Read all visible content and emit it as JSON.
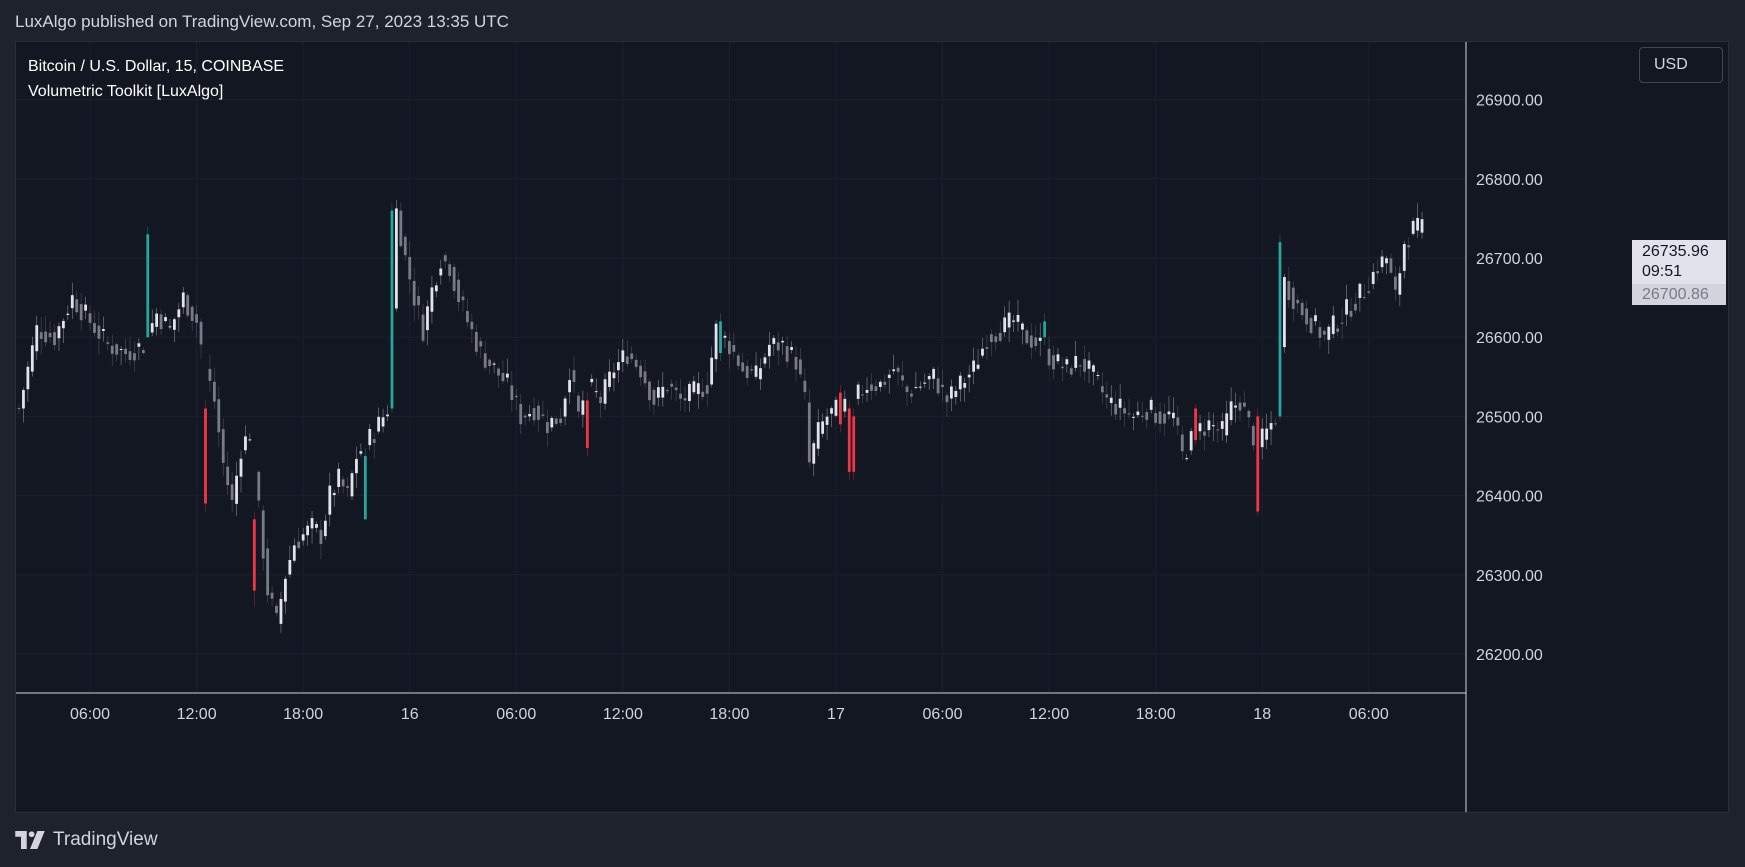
{
  "header": {
    "published_line": "LuxAlgo published on TradingView.com, Sep 27, 2023 13:35 UTC"
  },
  "legend": {
    "symbol_line": "Bitcoin / U.S. Dollar, 15, COINBASE",
    "indicator_line": "Volumetric Toolkit [LuxAlgo]"
  },
  "price_scale": {
    "currency_label": "USD",
    "last_price": "26735.96",
    "countdown": "09:51",
    "secondary_price": "26700.86"
  },
  "footer": {
    "brand": "TradingView"
  },
  "colors": {
    "background": "#131722",
    "frame": "#1e222d",
    "candle_neutral_up": "#e0e3eb",
    "candle_neutral_down": "#787b86",
    "bull_highlight": "#26a69a",
    "bear_highlight": "#f23645",
    "grid": "#1c2030",
    "axis_text": "#d1d4dc"
  },
  "chart_data": {
    "type": "candlestick",
    "title": "Bitcoin / U.S. Dollar, 15, COINBASE",
    "y_ticks": [
      26200,
      26300,
      26400,
      26500,
      26600,
      26700,
      26800,
      26900
    ],
    "ylim": [
      26150,
      26950
    ],
    "x_ticks": [
      {
        "label": "06:00",
        "i": 16
      },
      {
        "label": "12:00",
        "i": 40
      },
      {
        "label": "18:00",
        "i": 64
      },
      {
        "label": "16",
        "i": 88
      },
      {
        "label": "06:00",
        "i": 112
      },
      {
        "label": "12:00",
        "i": 136
      },
      {
        "label": "18:00",
        "i": 160
      },
      {
        "label": "17",
        "i": 184
      },
      {
        "label": "06:00",
        "i": 208
      },
      {
        "label": "12:00",
        "i": 232
      },
      {
        "label": "18:00",
        "i": 256
      },
      {
        "label": "18",
        "i": 280
      },
      {
        "label": "06:00",
        "i": 304
      }
    ],
    "anchors": [
      [
        0,
        26510
      ],
      [
        4,
        26610
      ],
      [
        8,
        26600
      ],
      [
        12,
        26650
      ],
      [
        16,
        26620
      ],
      [
        20,
        26590
      ],
      [
        24,
        26580
      ],
      [
        28,
        26590
      ],
      [
        31,
        26630
      ],
      [
        34,
        26610
      ],
      [
        37,
        26650
      ],
      [
        40,
        26620
      ],
      [
        42,
        26560
      ],
      [
        44,
        26520
      ],
      [
        46,
        26440
      ],
      [
        48,
        26390
      ],
      [
        50,
        26460
      ],
      [
        52,
        26480
      ],
      [
        54,
        26380
      ],
      [
        56,
        26280
      ],
      [
        58,
        26240
      ],
      [
        60,
        26300
      ],
      [
        62,
        26340
      ],
      [
        64,
        26350
      ],
      [
        66,
        26360
      ],
      [
        68,
        26350
      ],
      [
        70,
        26400
      ],
      [
        72,
        26420
      ],
      [
        74,
        26400
      ],
      [
        76,
        26450
      ],
      [
        80,
        26480
      ],
      [
        83,
        26510
      ],
      [
        85,
        26760
      ],
      [
        87,
        26700
      ],
      [
        89,
        26650
      ],
      [
        91,
        26610
      ],
      [
        93,
        26660
      ],
      [
        95,
        26700
      ],
      [
        97,
        26690
      ],
      [
        99,
        26650
      ],
      [
        101,
        26620
      ],
      [
        104,
        26580
      ],
      [
        107,
        26560
      ],
      [
        110,
        26540
      ],
      [
        113,
        26500
      ],
      [
        116,
        26510
      ],
      [
        119,
        26490
      ],
      [
        122,
        26500
      ],
      [
        124,
        26560
      ],
      [
        126,
        26500
      ],
      [
        128,
        26540
      ],
      [
        131,
        26520
      ],
      [
        134,
        26560
      ],
      [
        137,
        26580
      ],
      [
        140,
        26560
      ],
      [
        143,
        26520
      ],
      [
        146,
        26540
      ],
      [
        149,
        26520
      ],
      [
        152,
        26530
      ],
      [
        155,
        26540
      ],
      [
        157,
        26610
      ],
      [
        160,
        26590
      ],
      [
        163,
        26560
      ],
      [
        166,
        26550
      ],
      [
        169,
        26590
      ],
      [
        172,
        26590
      ],
      [
        175,
        26570
      ],
      [
        177,
        26520
      ],
      [
        178,
        26440
      ],
      [
        180,
        26480
      ],
      [
        182,
        26500
      ],
      [
        185,
        26510
      ],
      [
        188,
        26520
      ],
      [
        191,
        26540
      ],
      [
        194,
        26540
      ],
      [
        197,
        26560
      ],
      [
        200,
        26530
      ],
      [
        203,
        26540
      ],
      [
        206,
        26550
      ],
      [
        209,
        26520
      ],
      [
        212,
        26540
      ],
      [
        215,
        26560
      ],
      [
        218,
        26600
      ],
      [
        221,
        26610
      ],
      [
        224,
        26620
      ],
      [
        227,
        26600
      ],
      [
        230,
        26590
      ],
      [
        233,
        26570
      ],
      [
        236,
        26560
      ],
      [
        239,
        26570
      ],
      [
        242,
        26550
      ],
      [
        245,
        26520
      ],
      [
        248,
        26510
      ],
      [
        251,
        26500
      ],
      [
        254,
        26510
      ],
      [
        257,
        26500
      ],
      [
        260,
        26500
      ],
      [
        262,
        26450
      ],
      [
        265,
        26480
      ],
      [
        268,
        26490
      ],
      [
        271,
        26480
      ],
      [
        273,
        26510
      ],
      [
        275,
        26520
      ],
      [
        277,
        26490
      ],
      [
        279,
        26460
      ],
      [
        281,
        26480
      ],
      [
        283,
        26500
      ],
      [
        285,
        26670
      ],
      [
        288,
        26640
      ],
      [
        291,
        26620
      ],
      [
        294,
        26600
      ],
      [
        297,
        26620
      ],
      [
        300,
        26640
      ],
      [
        303,
        26660
      ],
      [
        306,
        26690
      ],
      [
        308,
        26700
      ],
      [
        310,
        26650
      ],
      [
        312,
        26720
      ],
      [
        314,
        26736
      ]
    ],
    "highlights": [
      {
        "i": 29,
        "kind": "bull",
        "open": 26600,
        "close": 26730,
        "low": 26600,
        "high": 26740
      },
      {
        "i": 42,
        "kind": "bear",
        "open": 26510,
        "close": 26390,
        "low": 26380,
        "high": 26520
      },
      {
        "i": 53,
        "kind": "bear",
        "open": 26370,
        "close": 26280,
        "low": 26260,
        "high": 26380
      },
      {
        "i": 78,
        "kind": "bull",
        "open": 26370,
        "close": 26450,
        "low": 26370,
        "high": 26460
      },
      {
        "i": 84,
        "kind": "bull",
        "open": 26510,
        "close": 26760,
        "low": 26505,
        "high": 26770
      },
      {
        "i": 128,
        "kind": "bear",
        "open": 26520,
        "close": 26460,
        "low": 26450,
        "high": 26530
      },
      {
        "i": 158,
        "kind": "bull",
        "open": 26580,
        "close": 26620,
        "low": 26570,
        "high": 26630
      },
      {
        "i": 185,
        "kind": "bear",
        "open": 26530,
        "close": 26490,
        "low": 26480,
        "high": 26540
      },
      {
        "i": 187,
        "kind": "bear",
        "open": 26510,
        "close": 26430,
        "low": 26420,
        "high": 26520
      },
      {
        "i": 188,
        "kind": "bear",
        "open": 26500,
        "close": 26430,
        "low": 26420,
        "high": 26510
      },
      {
        "i": 231,
        "kind": "bull",
        "open": 26600,
        "close": 26620,
        "low": 26590,
        "high": 26630
      },
      {
        "i": 265,
        "kind": "bear",
        "open": 26510,
        "close": 26470,
        "low": 26465,
        "high": 26515
      },
      {
        "i": 279,
        "kind": "bear",
        "open": 26500,
        "close": 26380,
        "low": 26375,
        "high": 26510
      },
      {
        "i": 284,
        "kind": "bull",
        "open": 26500,
        "close": 26720,
        "low": 26495,
        "high": 26730
      }
    ],
    "total_bars": 317
  }
}
